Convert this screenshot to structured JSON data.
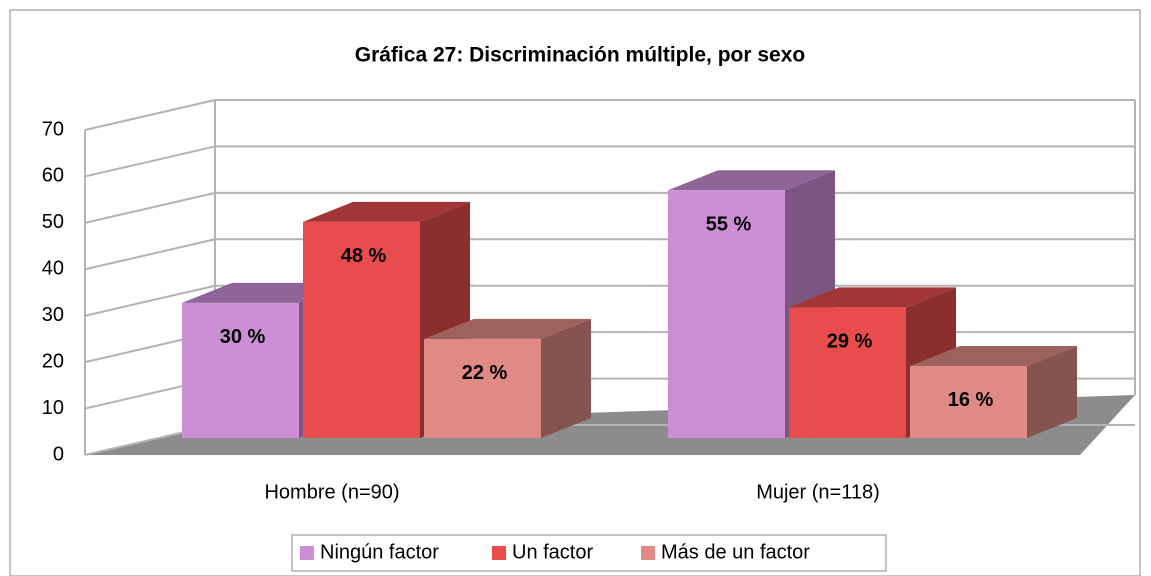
{
  "chart_data": {
    "type": "bar3d",
    "title": "Gráfica 27: Discriminación múltiple, por sexo",
    "categories": [
      "Hombre (n=90)",
      "Mujer (n=118)"
    ],
    "series": [
      {
        "name": "Ningún factor",
        "color": "#cc8fd6",
        "values": [
          30,
          55
        ],
        "value_labels": [
          "30 %",
          "55 %"
        ]
      },
      {
        "name": "Un factor",
        "color": "#e84c4c",
        "values": [
          48,
          29
        ],
        "value_labels": [
          "48 %",
          "29 %"
        ]
      },
      {
        "name": "Más de un factor",
        "color": "#e08a86",
        "values": [
          22,
          16
        ],
        "value_labels": [
          "22 %",
          "16 %"
        ]
      }
    ],
    "ylim": [
      0,
      70
    ],
    "yticks": [
      0,
      10,
      20,
      30,
      40,
      50,
      60,
      70
    ],
    "grid": true,
    "legend": "bottom"
  }
}
